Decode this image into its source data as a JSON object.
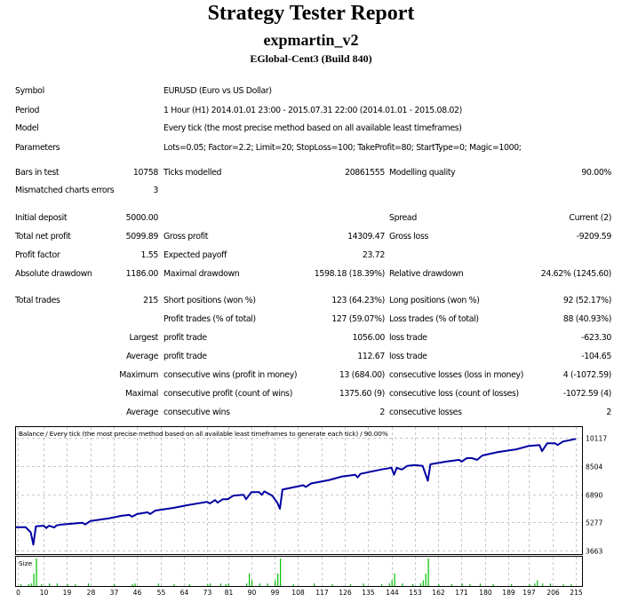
{
  "header": {
    "title": "Strategy Tester Report",
    "expert": "expmartin_v2",
    "server": "EGlobal-Cent3 (Build 840)"
  },
  "info": [
    {
      "label": "Symbol",
      "value": "EURUSD (Euro vs US Dollar)"
    },
    {
      "label": "Period",
      "value": "1 Hour (H1) 2014.01.01 23:00 - 2015.07.31 22:00 (2014.01.01 - 2015.08.02)"
    },
    {
      "label": "Model",
      "value": "Every tick (the most precise method based on all available least timeframes)"
    },
    {
      "label": "Parameters",
      "value": "Lots=0.05; Factor=2.2; Limit=20; StopLoss=100; TakeProfit=80; StartType=0; Magic=1000;"
    }
  ],
  "stats": [
    [
      "Bars in test",
      "10758",
      "Ticks modelled",
      "20861555",
      "Modelling quality",
      "90.00%"
    ],
    [
      "Mismatched charts errors",
      "3",
      "",
      "",
      "",
      ""
    ],
    [
      "Initial deposit",
      "5000.00",
      "",
      "",
      "Spread",
      "Current (2)"
    ],
    [
      "Total net profit",
      "5099.89",
      "Gross profit",
      "14309.47",
      "Gross loss",
      "-9209.59"
    ],
    [
      "Profit factor",
      "1.55",
      "Expected payoff",
      "23.72",
      "",
      ""
    ],
    [
      "Absolute drawdown",
      "1186.00",
      "Maximal drawdown",
      "1598.18 (18.39%)",
      "Relative drawdown",
      "24.62% (1245.60)"
    ],
    [
      "Total trades",
      "215",
      "Short positions (won %)",
      "123 (64.23%)",
      "Long positions (won %)",
      "92 (52.17%)"
    ],
    [
      "",
      "",
      "Profit trades (% of total)",
      "127 (59.07%)",
      "Loss trades (% of total)",
      "88 (40.93%)"
    ],
    [
      "",
      "Largest",
      "profit trade",
      "1056.00",
      "loss trade",
      "-623.30"
    ],
    [
      "",
      "Average",
      "profit trade",
      "112.67",
      "loss trade",
      "-104.65"
    ],
    [
      "",
      "Maximum",
      "consecutive wins (profit in money)",
      "13 (684.00)",
      "consecutive losses (loss in money)",
      "4 (-1072.59)"
    ],
    [
      "",
      "Maximal",
      "consecutive profit (count of wins)",
      "1375.60 (9)",
      "consecutive loss (count of losses)",
      "-1072.59 (4)"
    ],
    [
      "",
      "Average",
      "consecutive wins",
      "2",
      "consecutive losses",
      "2"
    ]
  ],
  "chart_data": {
    "type": "line",
    "title": "Balance / Every tick (the most precise method based on all available least timeframes to generate each tick) / 90.00%",
    "size_label": "Size",
    "x_ticks": [
      "0",
      "10",
      "19",
      "28",
      "37",
      "46",
      "55",
      "64",
      "73",
      "81",
      "90",
      "99",
      "108",
      "117",
      "126",
      "135",
      "144",
      "153",
      "162",
      "171",
      "180",
      "189",
      "197",
      "206",
      "215"
    ],
    "y_ticks": [
      "10117",
      "8504",
      "6890",
      "5277",
      "3663"
    ],
    "xlim": [
      0,
      215
    ],
    "ylim": [
      3663,
      10117
    ],
    "grid": true,
    "colors": {
      "balance": "#0000a0",
      "size": "#00c000",
      "grid": "#c8c8c8"
    },
    "balance": [
      [
        0,
        5000
      ],
      [
        3,
        5000
      ],
      [
        5,
        4700
      ],
      [
        6,
        4000
      ],
      [
        7,
        5050
      ],
      [
        10,
        5080
      ],
      [
        11,
        4950
      ],
      [
        12,
        5080
      ],
      [
        14,
        4980
      ],
      [
        15,
        5100
      ],
      [
        17,
        5150
      ],
      [
        25,
        5250
      ],
      [
        26,
        5150
      ],
      [
        28,
        5350
      ],
      [
        35,
        5500
      ],
      [
        40,
        5650
      ],
      [
        43,
        5700
      ],
      [
        44,
        5600
      ],
      [
        46,
        5750
      ],
      [
        50,
        5850
      ],
      [
        51,
        5750
      ],
      [
        53,
        5950
      ],
      [
        60,
        6100
      ],
      [
        65,
        6250
      ],
      [
        73,
        6450
      ],
      [
        74,
        6350
      ],
      [
        76,
        6550
      ],
      [
        77,
        6400
      ],
      [
        79,
        6600
      ],
      [
        81,
        6600
      ],
      [
        83,
        6800
      ],
      [
        87,
        6850
      ],
      [
        88,
        6600
      ],
      [
        90,
        7000
      ],
      [
        93,
        7000
      ],
      [
        94,
        6850
      ],
      [
        95,
        7050
      ],
      [
        98,
        6800
      ],
      [
        100,
        6400
      ],
      [
        101,
        6050
      ],
      [
        102,
        7150
      ],
      [
        110,
        7400
      ],
      [
        111,
        7300
      ],
      [
        113,
        7500
      ],
      [
        120,
        7700
      ],
      [
        125,
        7900
      ],
      [
        130,
        8000
      ],
      [
        131,
        7850
      ],
      [
        132,
        8050
      ],
      [
        140,
        8300
      ],
      [
        144,
        8400
      ],
      [
        145,
        8000
      ],
      [
        146,
        8400
      ],
      [
        148,
        8300
      ],
      [
        150,
        8500
      ],
      [
        153,
        8550
      ],
      [
        156,
        8500
      ],
      [
        158,
        7650
      ],
      [
        159,
        8600
      ],
      [
        165,
        8750
      ],
      [
        170,
        8850
      ],
      [
        171,
        8750
      ],
      [
        173,
        8950
      ],
      [
        175,
        8950
      ],
      [
        177,
        8850
      ],
      [
        179,
        9100
      ],
      [
        185,
        9300
      ],
      [
        192,
        9450
      ],
      [
        197,
        9650
      ],
      [
        201,
        9700
      ],
      [
        202,
        9350
      ],
      [
        204,
        9800
      ],
      [
        207,
        9800
      ],
      [
        208,
        9700
      ],
      [
        210,
        9900
      ],
      [
        215,
        10050
      ]
    ],
    "sizes": [
      [
        1,
        0.05
      ],
      [
        4,
        0.05
      ],
      [
        5,
        0.11
      ],
      [
        6,
        0.53
      ],
      [
        7,
        1.17
      ],
      [
        9,
        0.05
      ],
      [
        12,
        0.11
      ],
      [
        15,
        0.11
      ],
      [
        19,
        0.05
      ],
      [
        22,
        0.05
      ],
      [
        27,
        0.11
      ],
      [
        37,
        0.05
      ],
      [
        44,
        0.05
      ],
      [
        45,
        0.11
      ],
      [
        54,
        0.11
      ],
      [
        60,
        0.05
      ],
      [
        66,
        0.05
      ],
      [
        73,
        0.05
      ],
      [
        74,
        0.11
      ],
      [
        78,
        0.11
      ],
      [
        80,
        0.05
      ],
      [
        81,
        0.11
      ],
      [
        88,
        0.11
      ],
      [
        89,
        0.53
      ],
      [
        90,
        0.24
      ],
      [
        93,
        0.11
      ],
      [
        96,
        0.11
      ],
      [
        99,
        0.24
      ],
      [
        100,
        0.53
      ],
      [
        101,
        1.17
      ],
      [
        106,
        0.05
      ],
      [
        114,
        0.11
      ],
      [
        121,
        0.05
      ],
      [
        128,
        0.05
      ],
      [
        133,
        0.11
      ],
      [
        140,
        0.05
      ],
      [
        143,
        0.11
      ],
      [
        144,
        0.24
      ],
      [
        145,
        0.53
      ],
      [
        148,
        0.11
      ],
      [
        152,
        0.05
      ],
      [
        155,
        0.11
      ],
      [
        156,
        0.24
      ],
      [
        157,
        0.53
      ],
      [
        158,
        1.17
      ],
      [
        162,
        0.05
      ],
      [
        167,
        0.05
      ],
      [
        171,
        0.11
      ],
      [
        174,
        0.05
      ],
      [
        178,
        0.11
      ],
      [
        183,
        0.05
      ],
      [
        190,
        0.05
      ],
      [
        197,
        0.05
      ],
      [
        199,
        0.11
      ],
      [
        200,
        0.24
      ],
      [
        202,
        0.11
      ],
      [
        205,
        0.11
      ],
      [
        210,
        0.05
      ],
      [
        213,
        0.05
      ]
    ]
  }
}
